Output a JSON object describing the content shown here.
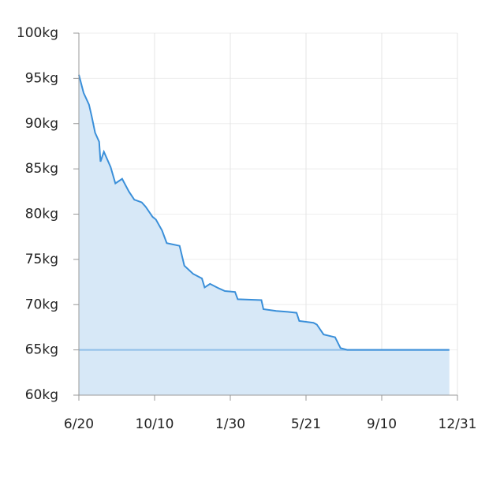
{
  "chart_data": {
    "type": "area",
    "x": [
      0,
      7,
      15,
      19,
      24,
      30,
      32,
      37,
      47,
      54,
      64,
      74,
      82,
      93,
      99,
      109,
      114,
      123,
      130,
      149,
      156,
      169,
      182,
      186,
      194,
      207,
      216,
      231,
      235,
      270,
      273,
      292,
      309,
      322,
      326,
      347,
      352,
      362,
      379,
      387,
      397,
      548
    ],
    "series": [
      {
        "color": "#3a8fd9",
        "fill": "#d7e8f7",
        "values": [
          95.4,
          93.4,
          92.1,
          90.8,
          89.0,
          88.0,
          85.8,
          86.9,
          85.2,
          83.4,
          83.9,
          82.5,
          81.6,
          81.3,
          80.8,
          79.7,
          79.4,
          78.2,
          76.8,
          76.5,
          74.3,
          73.4,
          72.9,
          71.9,
          72.3,
          71.8,
          71.5,
          71.4,
          70.6,
          70.5,
          69.5,
          69.3,
          69.2,
          69.1,
          68.2,
          68.0,
          67.8,
          66.7,
          66.4,
          65.2,
          65.0,
          65.0
        ]
      }
    ],
    "goal_line": 65,
    "goal_color": "#8fbfe8",
    "xlim": [
      0,
      560
    ],
    "xticks": [
      {
        "value": 0,
        "label": "6/20"
      },
      {
        "value": 112,
        "label": "10/10"
      },
      {
        "value": 224,
        "label": "1/30"
      },
      {
        "value": 336,
        "label": "5/21"
      },
      {
        "value": 448,
        "label": "9/10"
      },
      {
        "value": 560,
        "label": "12/31"
      }
    ],
    "ylim": [
      60,
      100
    ],
    "yticks": [
      {
        "value": 60,
        "label": "60kg"
      },
      {
        "value": 65,
        "label": "65kg"
      },
      {
        "value": 70,
        "label": "70kg"
      },
      {
        "value": 75,
        "label": "75kg"
      },
      {
        "value": 80,
        "label": "80kg"
      },
      {
        "value": 85,
        "label": "85kg"
      },
      {
        "value": 90,
        "label": "90kg"
      },
      {
        "value": 95,
        "label": "95kg"
      },
      {
        "value": 100,
        "label": "100kg"
      }
    ],
    "grid": true
  }
}
